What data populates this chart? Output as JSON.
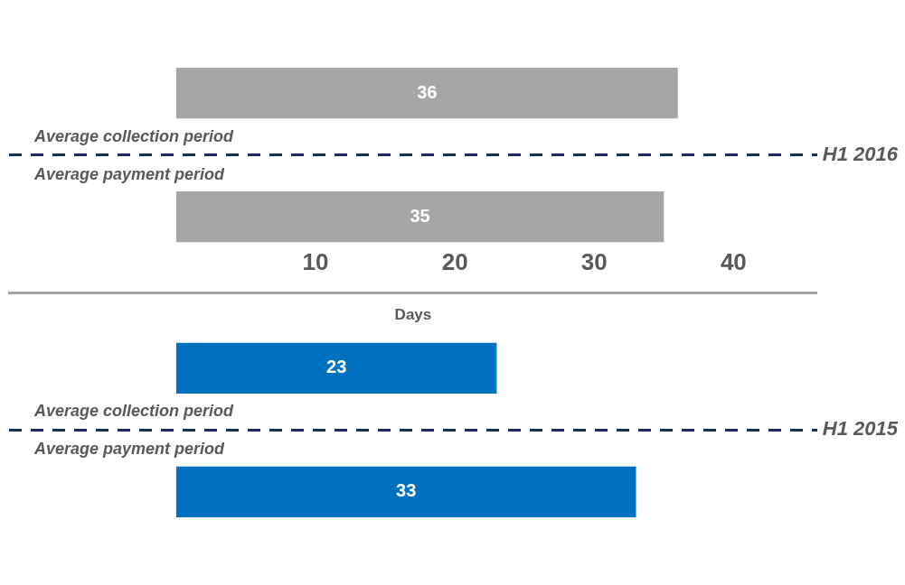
{
  "chart_data": {
    "type": "bar",
    "orientation": "horizontal",
    "categories": [
      "H1 2016",
      "H1 2015"
    ],
    "series": [
      {
        "name": "Average collection period",
        "colors": [
          "#a6a6a6",
          "#0070c0"
        ],
        "values": [
          36,
          23
        ]
      },
      {
        "name": "Average payment period",
        "colors": [
          "#a6a6a6",
          "#0070c0"
        ],
        "values": [
          35,
          33
        ]
      }
    ],
    "xlim": [
      -12,
      46
    ],
    "xticks": [
      10,
      20,
      30,
      40
    ],
    "xlabel": "Days",
    "grid": "y",
    "data_labels": true,
    "legend": false
  }
}
